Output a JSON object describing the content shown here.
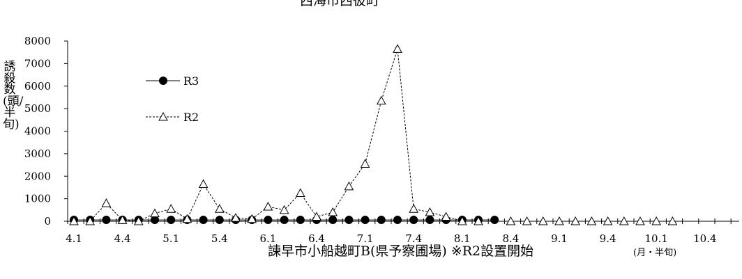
{
  "chart_data": {
    "type": "line",
    "title": "西海市西彼町",
    "xlabel": "諫早市小船越町B(県予察圃場) ※R2設置開始",
    "xunit": "(月・半旬)",
    "ylabel": "誘殺数(頭/半旬)",
    "ylim": [
      0,
      8000
    ],
    "yticks": [
      0,
      1000,
      2000,
      3000,
      4000,
      5000,
      6000,
      7000,
      8000
    ],
    "xtick_labels": [
      "4.1",
      "4.4",
      "5.1",
      "5.4",
      "6.1",
      "6.4",
      "7.1",
      "7.4",
      "8.1",
      "8.4",
      "9.1",
      "9.4",
      "10.1",
      "10.4"
    ],
    "legend_position": "left",
    "grid": false,
    "series": [
      {
        "name": "R3",
        "marker": "filled-circle",
        "line": "solid",
        "values": [
          60,
          60,
          60,
          60,
          60,
          60,
          60,
          60,
          60,
          60,
          60,
          60,
          60,
          60,
          60,
          60,
          60,
          60,
          60,
          60,
          60,
          60,
          60,
          60,
          60,
          60,
          60
        ]
      },
      {
        "name": "R2",
        "marker": "open-triangle",
        "line": "dashed",
        "values": [
          0,
          0,
          800,
          50,
          0,
          350,
          550,
          100,
          1650,
          550,
          150,
          100,
          650,
          500,
          1250,
          200,
          400,
          1550,
          2550,
          5350,
          7650,
          550,
          400,
          200,
          0,
          0,
          null,
          0,
          0,
          0,
          0,
          0,
          0,
          0,
          0,
          0,
          0,
          0
        ]
      }
    ]
  }
}
